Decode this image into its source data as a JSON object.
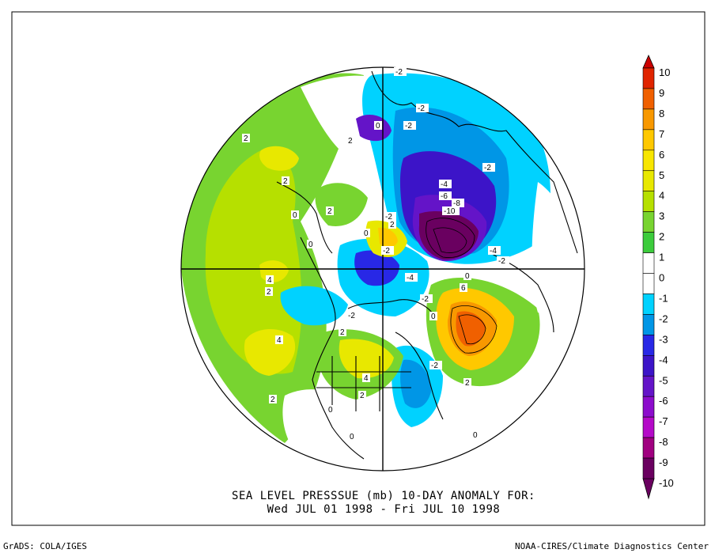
{
  "title": {
    "line1": "SEA LEVEL PRESSSUE (mb)   10-DAY ANOMALY FOR:",
    "line2": "Wed JUL 01 1998 - Fri JUL 10 1998"
  },
  "footer": {
    "left": "GrADS: COLA/IGES",
    "right": "NOAA-CIRES/Climate Diagnostics Center"
  },
  "colorbar": {
    "levels": [
      {
        "label": "10",
        "color": "#cc0000"
      },
      {
        "label": "9",
        "color": "#e02400"
      },
      {
        "label": "8",
        "color": "#f06000"
      },
      {
        "label": "7",
        "color": "#f89800"
      },
      {
        "label": "6",
        "color": "#ffc800"
      },
      {
        "label": "5",
        "color": "#f8e600"
      },
      {
        "label": "4",
        "color": "#e8e800"
      },
      {
        "label": "3",
        "color": "#b6e000"
      },
      {
        "label": "2",
        "color": "#78d430"
      },
      {
        "label": "1",
        "color": "#3ccc3c"
      },
      {
        "label": "0",
        "color": "#ffffff"
      },
      {
        "label": "-1",
        "color": "#ffffff"
      },
      {
        "label": "-2",
        "color": "#00d2ff"
      },
      {
        "label": "-3",
        "color": "#0096e6"
      },
      {
        "label": "-4",
        "color": "#2828e6"
      },
      {
        "label": "-5",
        "color": "#3c14c8"
      },
      {
        "label": "-6",
        "color": "#6414c8"
      },
      {
        "label": "-7",
        "color": "#8c0ccc"
      },
      {
        "label": "-8",
        "color": "#b40ac8"
      },
      {
        "label": "-9",
        "color": "#a00080"
      },
      {
        "label": "-10",
        "color": "#6a0060"
      }
    ]
  },
  "contour_labels": [
    {
      "text": "-2"
    },
    {
      "text": "-2"
    },
    {
      "text": "0"
    },
    {
      "text": "-2"
    },
    {
      "text": "-2"
    },
    {
      "text": "2"
    },
    {
      "text": "2"
    },
    {
      "text": "2"
    },
    {
      "text": "0"
    },
    {
      "text": "2"
    },
    {
      "text": "-4"
    },
    {
      "text": "-6"
    },
    {
      "text": "-8"
    },
    {
      "text": "-10"
    },
    {
      "text": "-2"
    },
    {
      "text": "2"
    },
    {
      "text": "0"
    },
    {
      "text": "-2"
    },
    {
      "text": "-4"
    },
    {
      "text": "-2"
    },
    {
      "text": "0"
    },
    {
      "text": "4"
    },
    {
      "text": "2"
    },
    {
      "text": "-4"
    },
    {
      "text": "-2"
    },
    {
      "text": "0"
    },
    {
      "text": "6"
    },
    {
      "text": "0"
    },
    {
      "text": "-2"
    },
    {
      "text": "4"
    },
    {
      "text": "2"
    },
    {
      "text": "-2"
    },
    {
      "text": "4"
    },
    {
      "text": "0"
    },
    {
      "text": "2"
    },
    {
      "text": "2"
    },
    {
      "text": "0"
    },
    {
      "text": "0"
    },
    {
      "text": "2"
    }
  ]
}
